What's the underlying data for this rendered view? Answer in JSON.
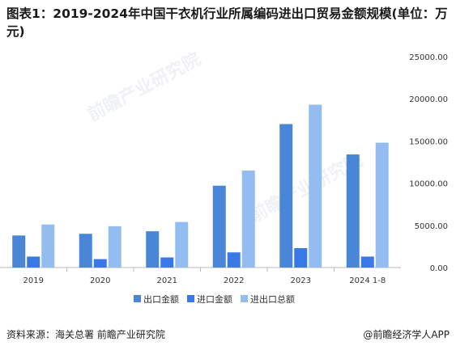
{
  "title": "图表1：2019-2024年中国干衣机行业所属编码进出口贸易金额规模(单位：万元)",
  "footer": {
    "source": "资料来源：海关总署 前瞻产业研究院",
    "brand": "@前瞻经济学人APP"
  },
  "watermark": "前瞻产业研究院",
  "chart_data": {
    "type": "bar",
    "categories": [
      "2019",
      "2020",
      "2021",
      "2022",
      "2023",
      "2024 1-8"
    ],
    "series": [
      {
        "name": "出口金额",
        "color": "#4a86d8",
        "values": [
          3800,
          4000,
          4300,
          9700,
          17000,
          13400
        ]
      },
      {
        "name": "进口金额",
        "color": "#3b78e7",
        "values": [
          1300,
          1000,
          1200,
          1800,
          2300,
          1300
        ]
      },
      {
        "name": "进出口总额",
        "color": "#93bdf0",
        "values": [
          5100,
          4900,
          5400,
          11500,
          19300,
          14800
        ]
      }
    ],
    "yaxis_position": "right",
    "ylim": [
      0,
      25000
    ],
    "yticks": [
      "25000.00",
      "20000.00",
      "15000.00",
      "10000.00",
      "5000.00",
      "0.00"
    ],
    "ytick_values": [
      25000,
      20000,
      15000,
      10000,
      5000,
      0
    ],
    "grid": false,
    "legend_position": "bottom"
  }
}
